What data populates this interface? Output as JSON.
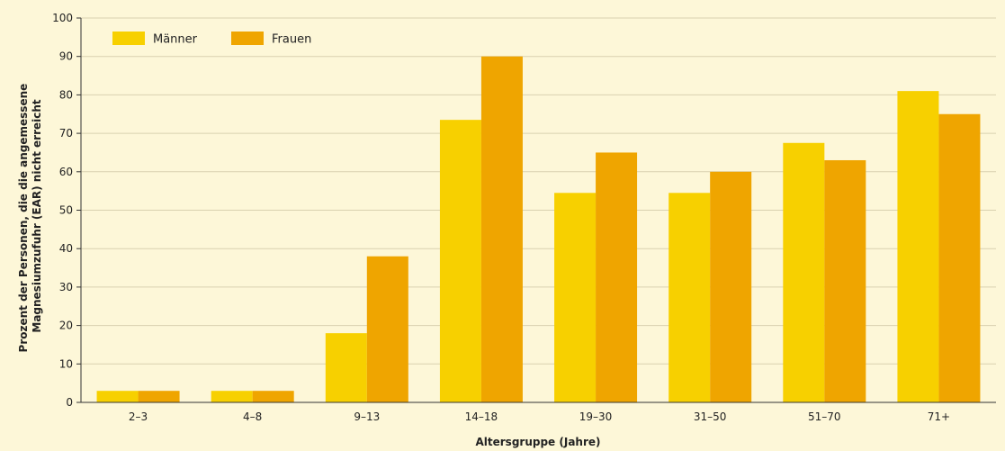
{
  "chart_data": {
    "type": "bar",
    "title": "",
    "xlabel": "Altersgruppe (Jahre)",
    "ylabel_lines": [
      "Prozent der Personen, die die angemessene",
      "Magnesiumzufuhr (EAR) nicht erreicht"
    ],
    "ylim": [
      0,
      100
    ],
    "yticks": [
      0,
      10,
      20,
      30,
      40,
      50,
      60,
      70,
      80,
      90,
      100
    ],
    "grid": true,
    "legend_position": "top-left",
    "categories": [
      "2–3",
      "4–8",
      "9–13",
      "14–18",
      "19–30",
      "31–50",
      "51–70",
      "71+"
    ],
    "series": [
      {
        "name": "Männer",
        "color": "#f7d000",
        "values": [
          3,
          3,
          18,
          73.5,
          54.5,
          54.5,
          67.5,
          81
        ]
      },
      {
        "name": "Frauen",
        "color": "#efa500",
        "values": [
          3,
          3,
          38,
          90,
          65,
          60,
          63,
          75
        ]
      }
    ],
    "colors": {
      "background": "#fdf7d8",
      "grid": "#d9d1b0",
      "axis": "#333333"
    }
  }
}
